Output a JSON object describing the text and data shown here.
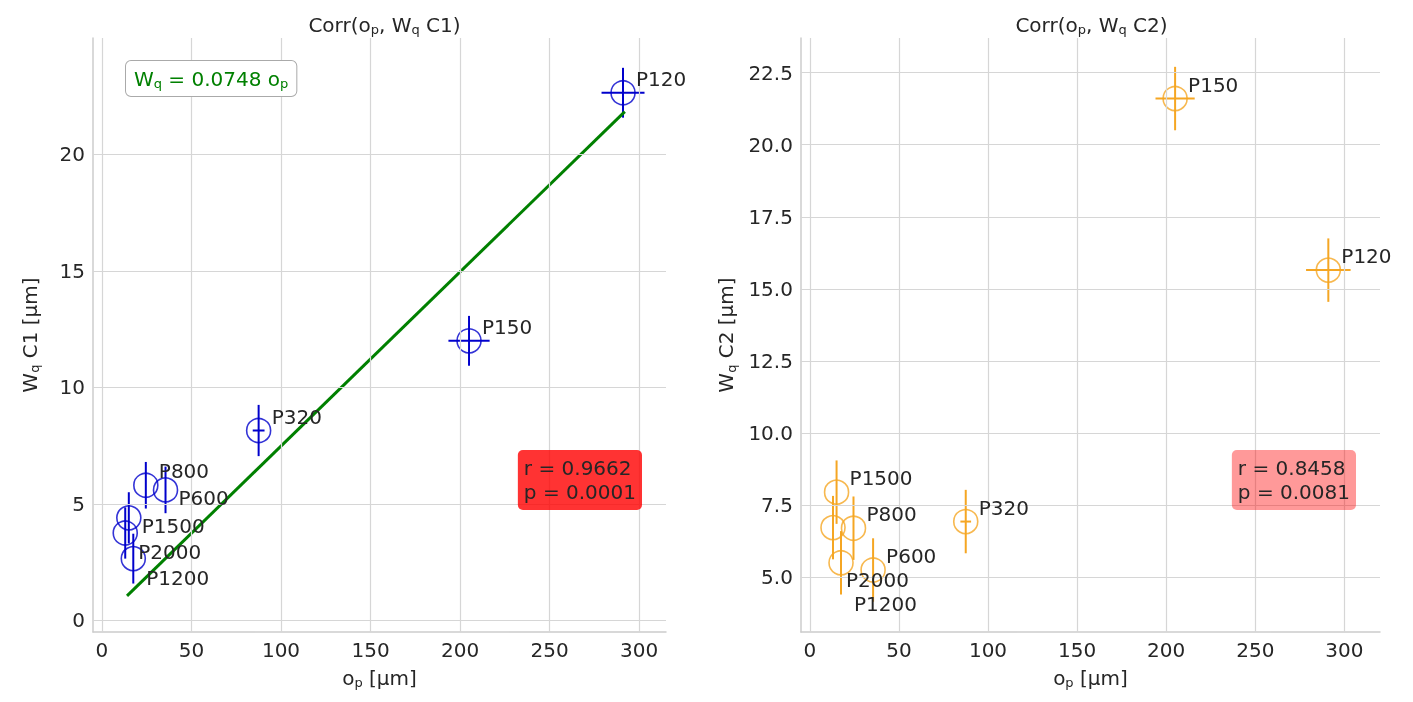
{
  "chart_data": [
    {
      "type": "scatter",
      "title": "Corr(o$_{p}$, W$_{q}$ C1)",
      "xlabel": "o$_{p}$ [μm]",
      "ylabel": "W$_{q}$ C1 [μm]",
      "xlim": [
        -5,
        315
      ],
      "ylim": [
        -0.5,
        25
      ],
      "xticks": [
        0,
        50,
        100,
        150,
        200,
        250,
        300
      ],
      "yticks": [
        0,
        5,
        10,
        15,
        20
      ],
      "grid": true,
      "marker": "circle",
      "series": [
        {
          "color": "#0000cc",
          "x": [
            291,
            205,
            87.5,
            24.5,
            35.5,
            15,
            13,
            17.5
          ],
          "values": [
            22.65,
            12.0,
            8.15,
            5.8,
            5.6,
            4.4,
            3.75,
            2.65
          ],
          "errors": [
            1.07,
            1.07,
            1.1,
            1.0,
            1.0,
            1.1,
            1.1,
            1.07
          ],
          "xerrors": [
            12,
            11.5,
            3.3,
            null,
            null,
            null,
            null,
            null
          ]
        },
        {
          "type": "line",
          "color": "#008000",
          "marker": "none",
          "x": [
            14,
            292
          ],
          "values": [
            1.05,
            21.84
          ]
        }
      ],
      "annotations": [
        {
          "text": "P120",
          "x": 291,
          "y": 22.65
        },
        {
          "text": "P150",
          "x": 205,
          "y": 12.0
        },
        {
          "text": "P320",
          "x": 87.5,
          "y": 8.15
        },
        {
          "text": "P800",
          "x": 24.5,
          "y": 5.8
        },
        {
          "text": "P600",
          "x": 35.5,
          "y": 5.6
        },
        {
          "text": "P1500",
          "x": 15,
          "y": 4.4
        },
        {
          "text": "P2000",
          "x": 13,
          "y": 3.75
        },
        {
          "text": "P1200",
          "x": 17.5,
          "y": 2.65
        },
        "W$_{q}$ = 0.0748 o$_{p}$",
        "r = 0.9662\np = 0.0001"
      ]
    },
    {
      "type": "scatter",
      "title": "Corr(o$_{p}$, W$_{q}$ C2)",
      "xlabel": "o$_{p}$ [μm]",
      "ylabel": "W$_{q}$ C2 [μm]",
      "xlim": [
        -5,
        320
      ],
      "ylim": [
        3.1,
        23.7
      ],
      "xticks": [
        0,
        50,
        100,
        150,
        200,
        250,
        300
      ],
      "yticks": [
        {
          "value": 5,
          "label": "5.0"
        },
        7.5,
        {
          "value": 10,
          "label": "10.0"
        },
        12.5,
        {
          "value": 15,
          "label": "15.0"
        },
        17.5,
        {
          "value": 20,
          "label": "20.0"
        },
        22.5
      ],
      "grid": true,
      "marker": "circle",
      "series": [
        {
          "color": "#f5a623",
          "x": [
            291,
            205,
            87.5,
            24.5,
            35.5,
            15,
            13,
            17.5
          ],
          "values": [
            15.65,
            21.6,
            6.93,
            6.7,
            5.25,
            7.95,
            6.72,
            5.5
          ],
          "errors": [
            1.1,
            1.1,
            1.1,
            1.1,
            1.1,
            1.1,
            1.1,
            1.1
          ],
          "xerrors": [
            12.5,
            11,
            3,
            null,
            null,
            null,
            null,
            null
          ]
        }
      ],
      "annotations": [
        {
          "text": "P120",
          "x": 291,
          "y": 15.65
        },
        {
          "text": "P150",
          "x": 205,
          "y": 21.6
        },
        {
          "text": "P320",
          "x": 87.5,
          "y": 6.93
        },
        {
          "text": "P800",
          "x": 24.5,
          "y": 6.7
        },
        {
          "text": "P600",
          "x": 35.5,
          "y": 5.25
        },
        {
          "text": "P1500",
          "x": 15,
          "y": 7.95
        },
        {
          "text": "P2000",
          "x": 13,
          "y": 6.72
        },
        {
          "text": "P1200",
          "x": 17.5,
          "y": 5.5
        },
        "r = 0.8458\np = 0.0081"
      ]
    }
  ]
}
